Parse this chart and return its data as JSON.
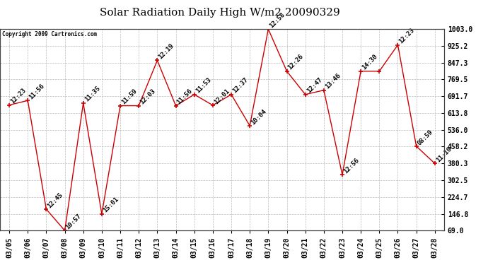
{
  "title": "Solar Radiation Daily High W/m2 20090329",
  "copyright": "Copyright 2009 Cartronics.com",
  "dates": [
    "03/05",
    "03/06",
    "03/07",
    "03/08",
    "03/09",
    "03/10",
    "03/11",
    "03/12",
    "03/13",
    "03/14",
    "03/15",
    "03/16",
    "03/17",
    "03/18",
    "03/19",
    "03/20",
    "03/21",
    "03/22",
    "03/23",
    "03/24",
    "03/25",
    "03/26",
    "03/27",
    "03/28"
  ],
  "values": [
    651,
    672,
    168,
    69,
    660,
    146,
    648,
    648,
    858,
    648,
    700,
    650,
    700,
    555,
    1003,
    808,
    700,
    720,
    328,
    808,
    808,
    930,
    460,
    380
  ],
  "times": [
    "12:23",
    "11:56",
    "12:45",
    "10:57",
    "11:35",
    "15:01",
    "11:59",
    "12:03",
    "12:19",
    "11:56",
    "11:53",
    "12:01",
    "12:37",
    "10:04",
    "12:58",
    "12:26",
    "12:47",
    "13:46",
    "12:56",
    "14:30",
    "",
    "12:23",
    "08:59",
    "11:10"
  ],
  "line_color": "#cc0000",
  "marker_color": "#cc0000",
  "bg_color": "#ffffff",
  "grid_color": "#bbbbbb",
  "title_fontsize": 11,
  "tick_fontsize": 7,
  "label_fontsize": 6.5,
  "ylim": [
    69.0,
    1003.0
  ],
  "yticks": [
    69.0,
    146.8,
    224.7,
    302.5,
    380.3,
    458.2,
    536.0,
    613.8,
    691.7,
    769.5,
    847.3,
    925.2,
    1003.0
  ]
}
